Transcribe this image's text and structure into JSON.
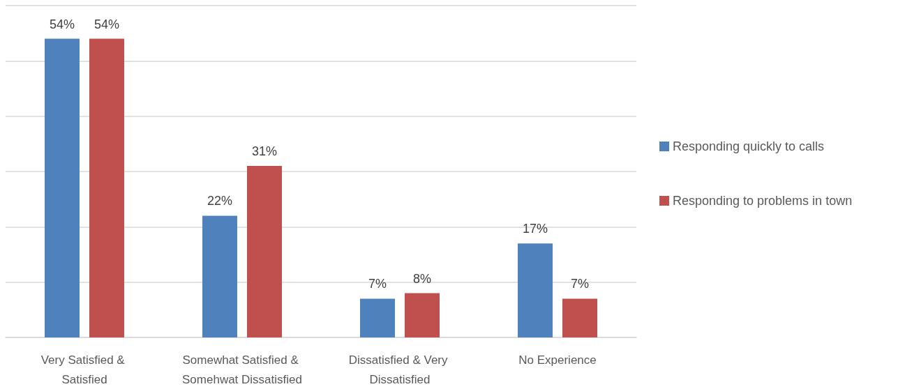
{
  "chart_data": {
    "type": "bar",
    "categories": [
      "Very Satisfied & Satisfied",
      "Somewhat Satisfied & Somehwat Dissatisfied",
      "Dissatisfied & Very Dissatisfied",
      "No Experience"
    ],
    "series": [
      {
        "name": "Responding quickly to calls",
        "color": "#4f81bd",
        "values": [
          54,
          22,
          7,
          17
        ],
        "value_labels": [
          "54%",
          "22%",
          "7%",
          "17%"
        ]
      },
      {
        "name": "Responding to problems in town",
        "color": "#c0504d",
        "values": [
          54,
          31,
          8,
          7
        ],
        "value_labels": [
          "54%",
          "31%",
          "8%",
          "7%"
        ]
      }
    ],
    "ylim": [
      0,
      60
    ],
    "yticks": [
      {
        "value": 0,
        "label": null
      },
      {
        "value": 10,
        "label": null
      },
      {
        "value": 20,
        "label": null
      },
      {
        "value": 30,
        "label": null
      },
      {
        "value": 40,
        "label": null
      },
      {
        "value": 50,
        "label": null
      },
      {
        "value": 60,
        "label": null
      }
    ],
    "grid": "y",
    "legend": "right",
    "tick_labels": "x"
  }
}
